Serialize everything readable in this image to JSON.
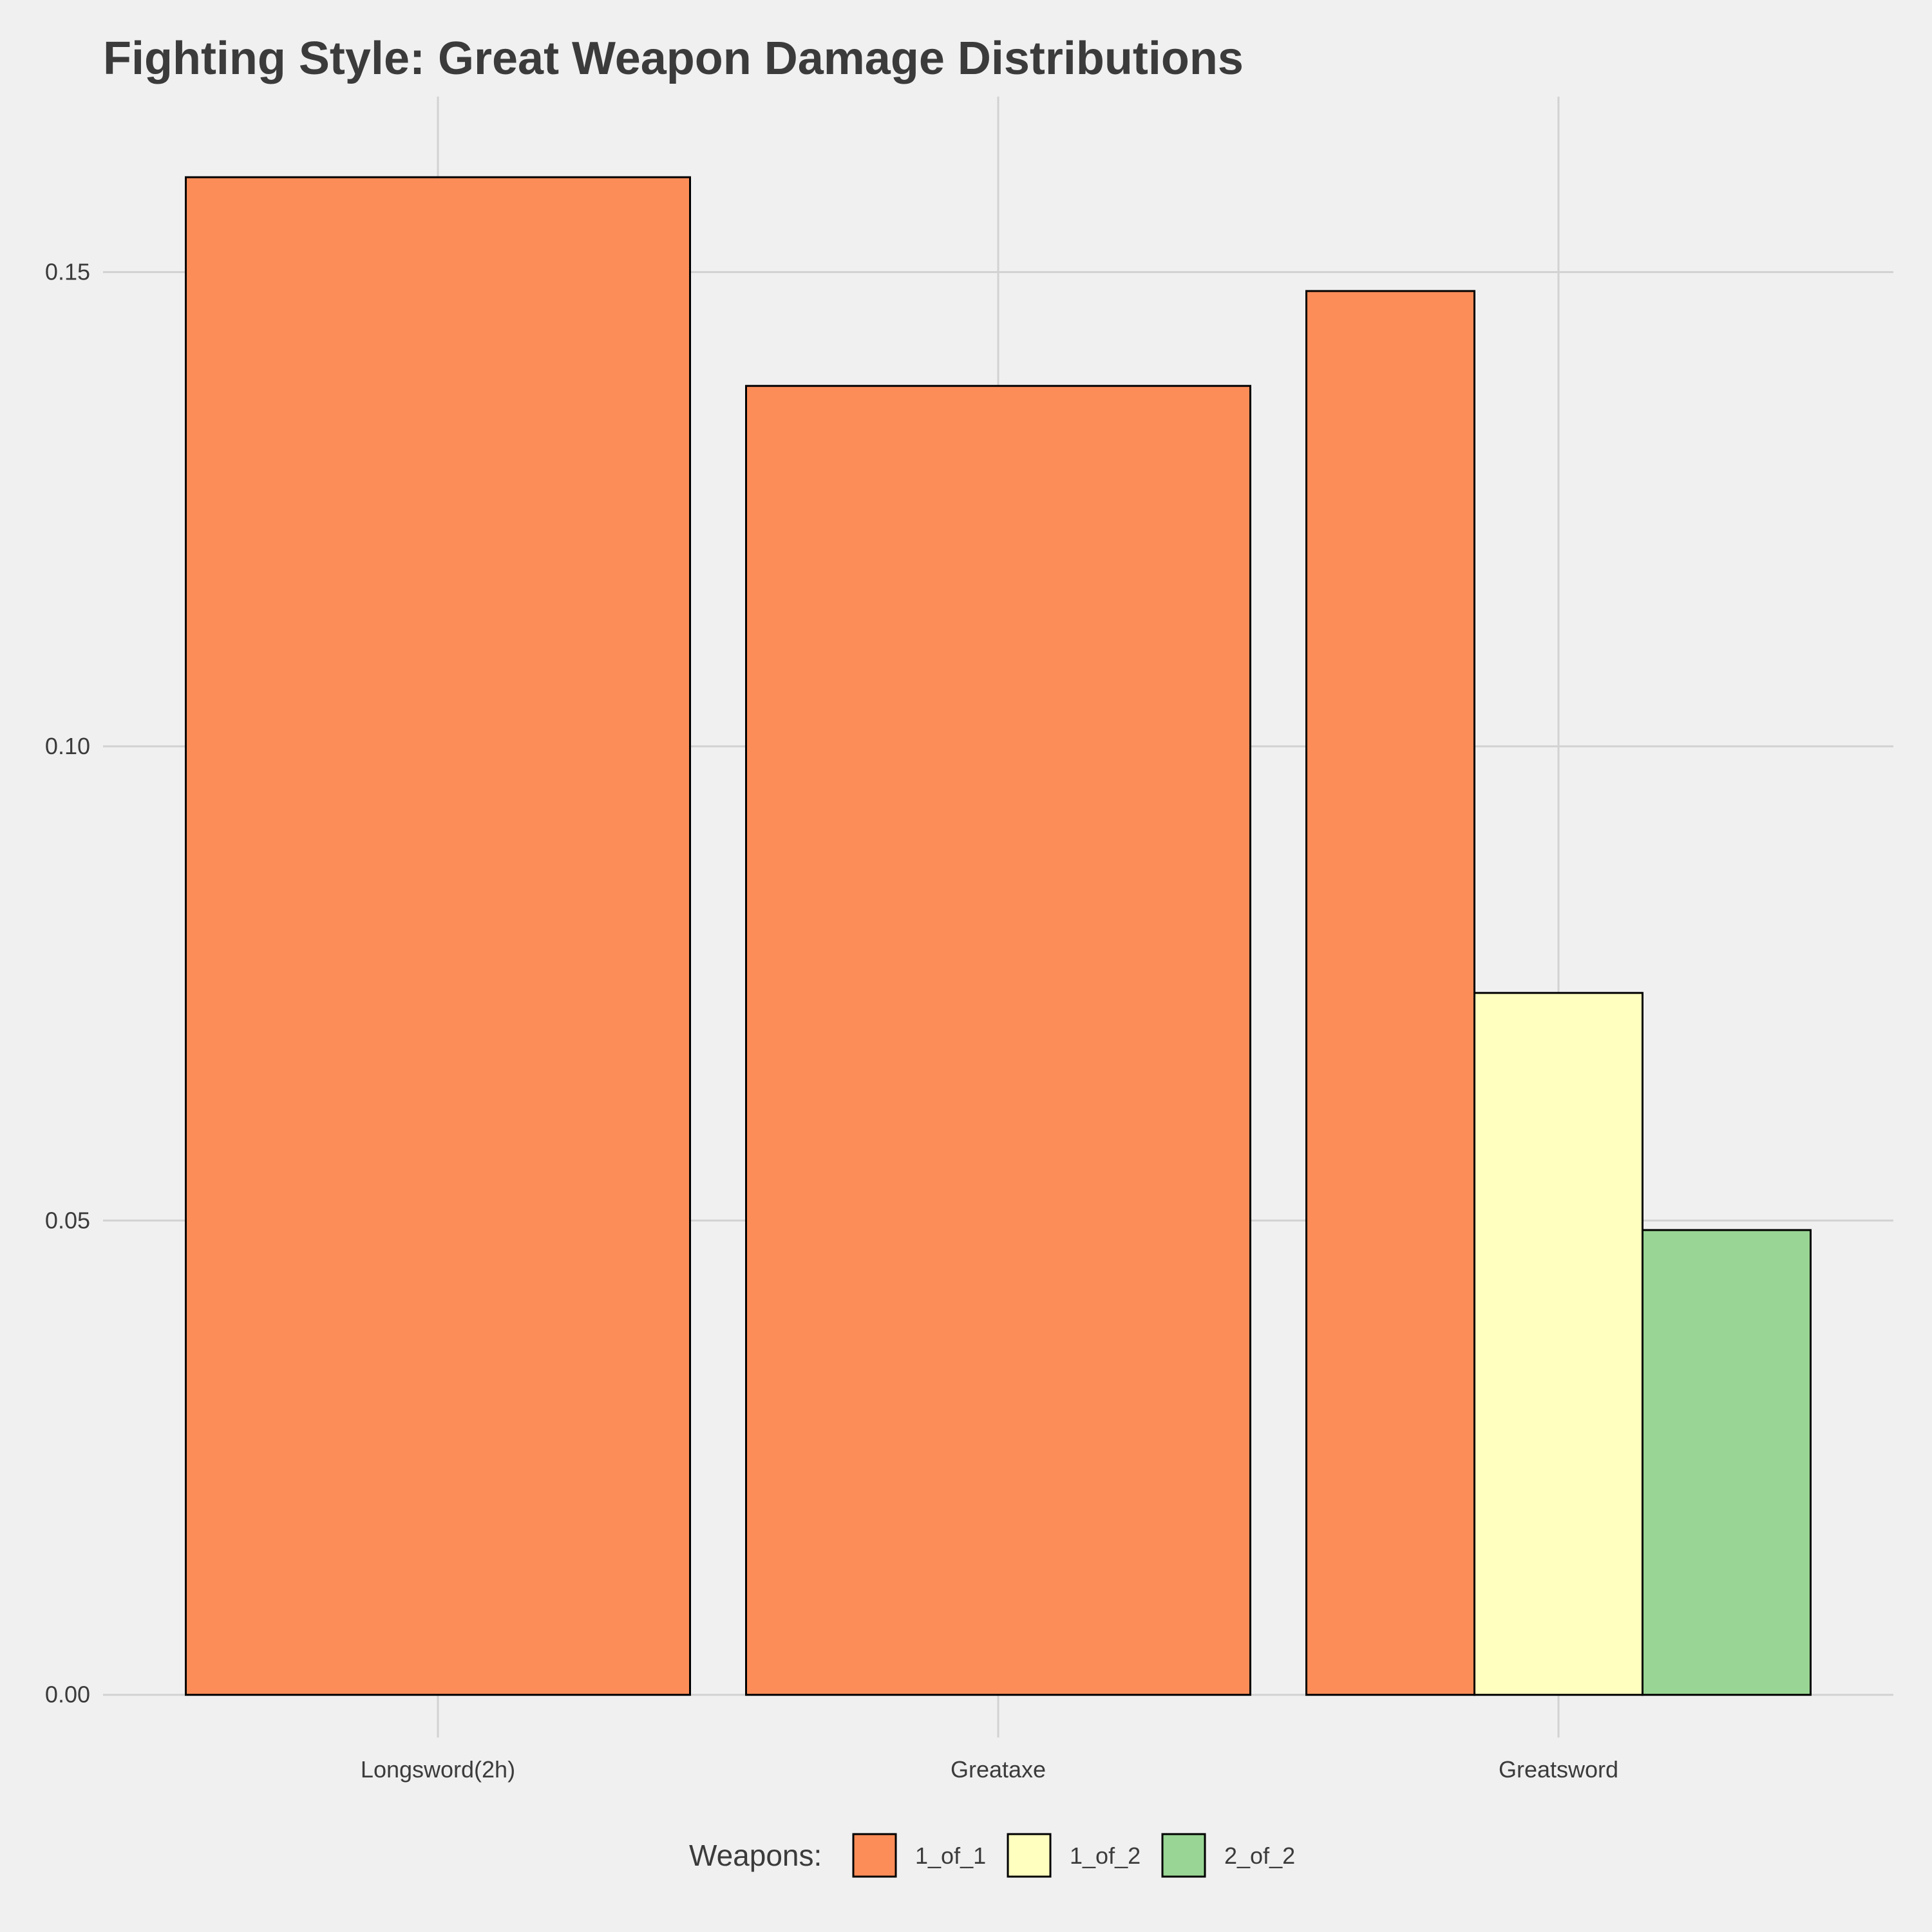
{
  "chart_data": {
    "type": "bar",
    "title": "Fighting Style: Great Weapon Damage Distributions",
    "xlabel": "",
    "ylabel": "",
    "categories": [
      "Longsword(2h)",
      "Greataxe",
      "Greatsword"
    ],
    "series": [
      {
        "name": "1_of_1",
        "color": "#fc8d59",
        "values": [
          0.16,
          0.138,
          0.148
        ]
      },
      {
        "name": "1_of_2",
        "color": "#ffffbf",
        "values": [
          null,
          null,
          0.074
        ]
      },
      {
        "name": "2_of_2",
        "color": "#99d594",
        "values": [
          null,
          null,
          0.049
        ]
      }
    ],
    "yticks": [
      "0.00",
      "0.05",
      "0.10",
      "0.15"
    ],
    "ytick_values": [
      0,
      0.05,
      0.1,
      0.15
    ],
    "ylim": [
      -0.0045,
      0.1685
    ],
    "grid": true,
    "legend": {
      "title": "Weapons:",
      "placement": "bottom"
    },
    "colors": {
      "background": "#f0f0f0",
      "grid": "#d2d2d2",
      "bar_outline": "#000000",
      "text": "#3b3b3b"
    }
  }
}
